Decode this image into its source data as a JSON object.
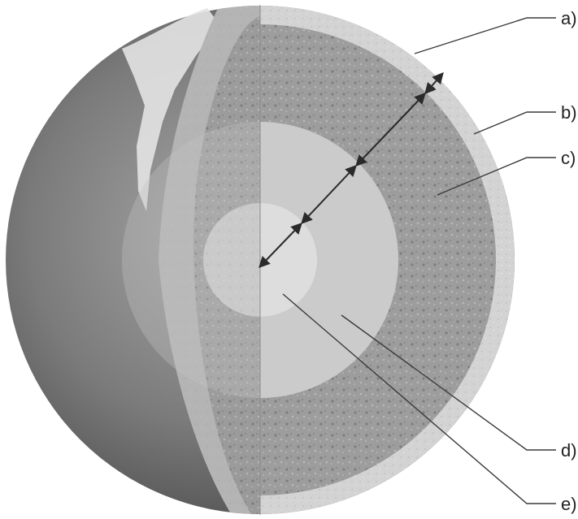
{
  "labels": {
    "a": "a)",
    "b": "b)",
    "c": "c)",
    "d": "d)",
    "e": "e)"
  },
  "colors": {
    "background": "#ffffff",
    "globe_surface": "#7a7a7a",
    "crust": "#d4d4d4",
    "mantle": "#9e9e9e",
    "outer_core": "#cfcfcf",
    "inner_core": "#ececec",
    "line": "#3a3a3a"
  }
}
